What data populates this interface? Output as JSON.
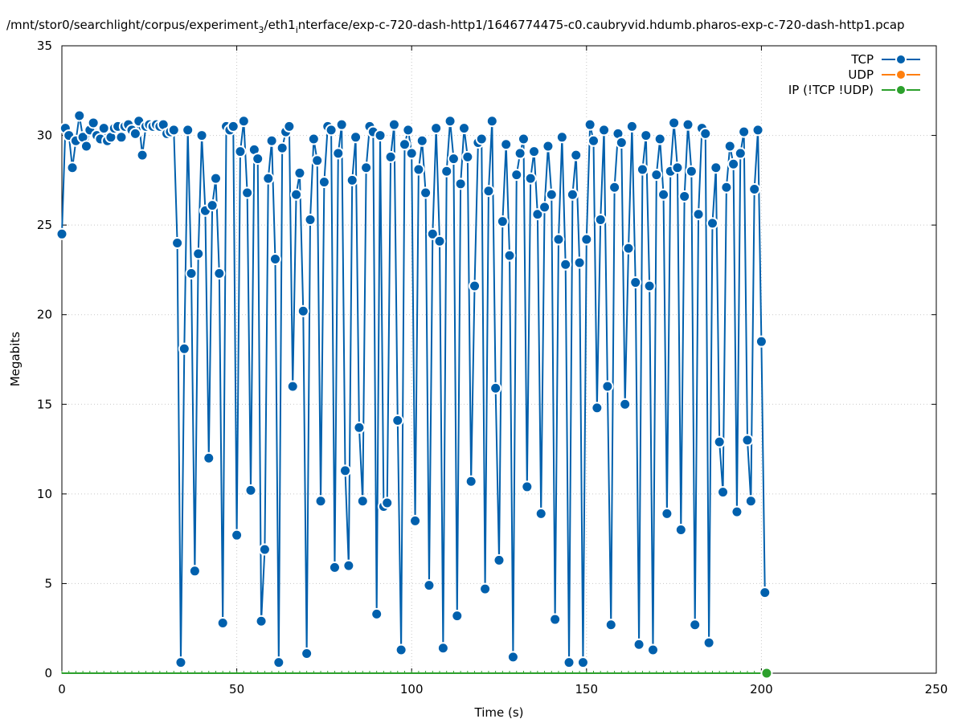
{
  "chart_data": {
    "type": "line",
    "title_parts": {
      "a": "/mnt/stor0/searchlight/corpus/experiment",
      "sub1": "3",
      "b": "/eth1",
      "sub2": "i",
      "c": "nterface/exp-c-720-dash-http1/1646774475-c0.caubryvid.hdumb.pharos-exp-c-720-dash-http1.pcap"
    },
    "xlabel": "Time (s)",
    "ylabel": "Megabits",
    "xlim": [
      0,
      250
    ],
    "ylim": [
      0,
      35
    ],
    "xticks": [
      0,
      50,
      100,
      150,
      200,
      250
    ],
    "yticks": [
      0,
      5,
      10,
      15,
      20,
      25,
      30,
      35
    ],
    "grid": true,
    "legend_position": "top-right",
    "series": [
      {
        "name": "TCP",
        "color": "#0060ad",
        "x_start": 0,
        "x_step": 1,
        "values": [
          24.5,
          30.4,
          30,
          28.2,
          29.7,
          31.1,
          29.9,
          29.4,
          30.3,
          30.7,
          30,
          29.8,
          30.4,
          29.7,
          29.9,
          30.4,
          30.5,
          29.9,
          30.5,
          30.6,
          30.3,
          30.1,
          30.8,
          28.9,
          30.5,
          30.6,
          30.5,
          30.6,
          30.5,
          30.6,
          30.1,
          30.2,
          30.3,
          24,
          0.6,
          18.1,
          30.3,
          22.3,
          5.7,
          23.4,
          30,
          25.8,
          12,
          26.1,
          27.6,
          22.3,
          2.8,
          30.5,
          30.3,
          30.5,
          7.7,
          29.1,
          30.8,
          26.8,
          10.2,
          29.2,
          28.7,
          2.9,
          6.9,
          27.6,
          29.7,
          23.1,
          0.6,
          29.3,
          30.2,
          30.5,
          16,
          26.7,
          27.9,
          20.2,
          1.1,
          25.3,
          29.8,
          28.6,
          9.6,
          27.4,
          30.5,
          30.3,
          5.9,
          29,
          30.6,
          11.3,
          6,
          27.5,
          29.9,
          13.7,
          9.6,
          28.2,
          30.5,
          30.2,
          3.3,
          30,
          9.3,
          9.5,
          28.8,
          30.6,
          14.1,
          1.3,
          29.5,
          30.3,
          29,
          8.5,
          28.1,
          29.7,
          26.8,
          4.9,
          24.5,
          30.4,
          24.1,
          1.4,
          28,
          30.8,
          28.7,
          3.2,
          27.3,
          30.4,
          28.8,
          10.7,
          21.6,
          29.6,
          29.8,
          4.7,
          26.9,
          30.8,
          15.9,
          6.3,
          25.2,
          29.5,
          23.3,
          0.9,
          27.8,
          29,
          29.8,
          10.4,
          27.6,
          29.1,
          25.6,
          8.9,
          26,
          29.4,
          26.7,
          3,
          24.2,
          29.9,
          22.8,
          0.6,
          26.7,
          28.9,
          22.9,
          0.6,
          24.2,
          30.6,
          29.7,
          14.8,
          25.3,
          30.3,
          16,
          2.7,
          27.1,
          30.1,
          29.6,
          15,
          23.7,
          30.5,
          21.8,
          1.6,
          28.1,
          30,
          21.6,
          1.3,
          27.8,
          29.8,
          26.7,
          8.9,
          28,
          30.7,
          28.2,
          8,
          26.6,
          30.6,
          28,
          2.7,
          25.6,
          30.4,
          30.1,
          1.7,
          25.1,
          28.2,
          12.9,
          10.1,
          27.1,
          29.4,
          28.4,
          9,
          29,
          30.2,
          13,
          9.6,
          27,
          30.3,
          18.5,
          4.5
        ]
      },
      {
        "name": "UDP",
        "color": "#ff7f0e",
        "values": []
      },
      {
        "name": "IP (!TCP  !UDP)",
        "color": "#2ca02c",
        "x": [
          0,
          201.5
        ],
        "values": [
          0,
          0
        ]
      }
    ]
  }
}
